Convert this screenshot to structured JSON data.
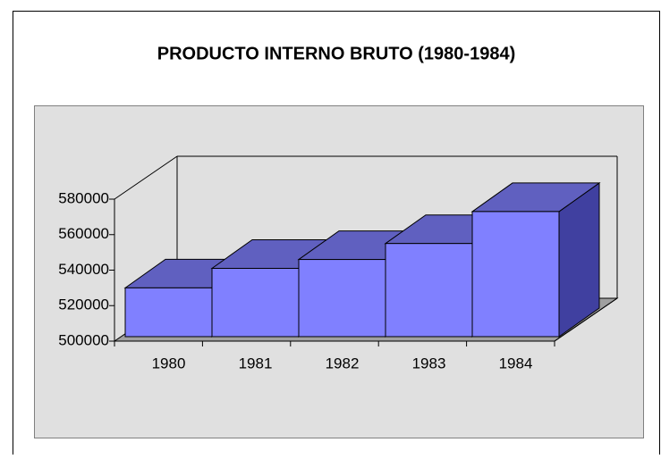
{
  "chart_data": {
    "type": "bar3d",
    "title": "PRODUCTO INTERNO BRUTO (1980-1984)",
    "categories": [
      "1980",
      "1981",
      "1982",
      "1983",
      "1984"
    ],
    "values": [
      530000,
      541000,
      546000,
      555000,
      573000
    ],
    "color": "#8080ff",
    "ylim": [
      500000,
      580000
    ],
    "yticks": [
      500000,
      520000,
      540000,
      560000,
      580000
    ]
  }
}
